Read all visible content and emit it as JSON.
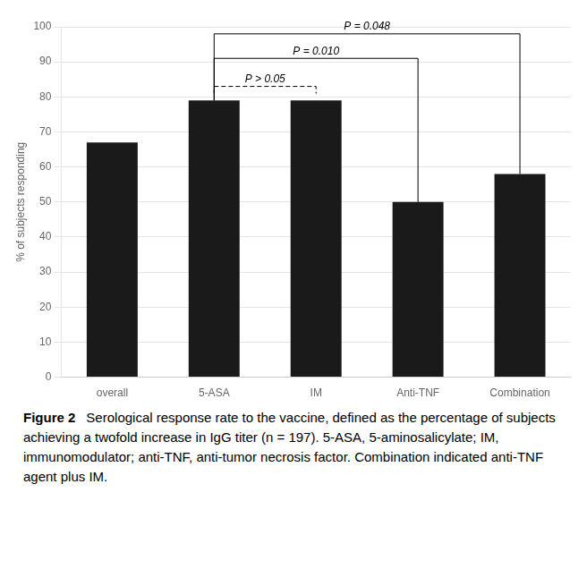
{
  "chart_data": {
    "type": "bar",
    "categories": [
      "overall",
      "5-ASA",
      "IM",
      "Anti-TNF",
      "Combination"
    ],
    "values": [
      67,
      79,
      79,
      50,
      58
    ],
    "color": "#1a1a1a",
    "ylabel": "% of subjects responding",
    "ylim": [
      0,
      100
    ],
    "yticks": [
      0,
      10,
      20,
      30,
      40,
      50,
      60,
      70,
      80,
      90,
      100
    ],
    "grid": true,
    "annotations": [
      {
        "text": "P > 0.05",
        "from": "5-ASA",
        "to": "IM",
        "y": 83,
        "line_style": "dashed"
      },
      {
        "text": "P = 0.010",
        "from": "5-ASA",
        "to": "Anti-TNF",
        "y": 91,
        "line_style": "solid"
      },
      {
        "text": "P = 0.048",
        "from": "5-ASA",
        "to": "Combination",
        "y": 98,
        "line_style": "solid"
      }
    ],
    "caption_title": "Figure 2",
    "caption": "Serological response rate to the vaccine, defined as the percentage of subjects achieving a twofold increase in IgG titer (n = 197). 5-ASA, 5-aminosalicylate; IM, immunomodulator; anti-TNF, anti-tumor necrosis factor. Combination indicated anti-TNF agent plus IM."
  }
}
